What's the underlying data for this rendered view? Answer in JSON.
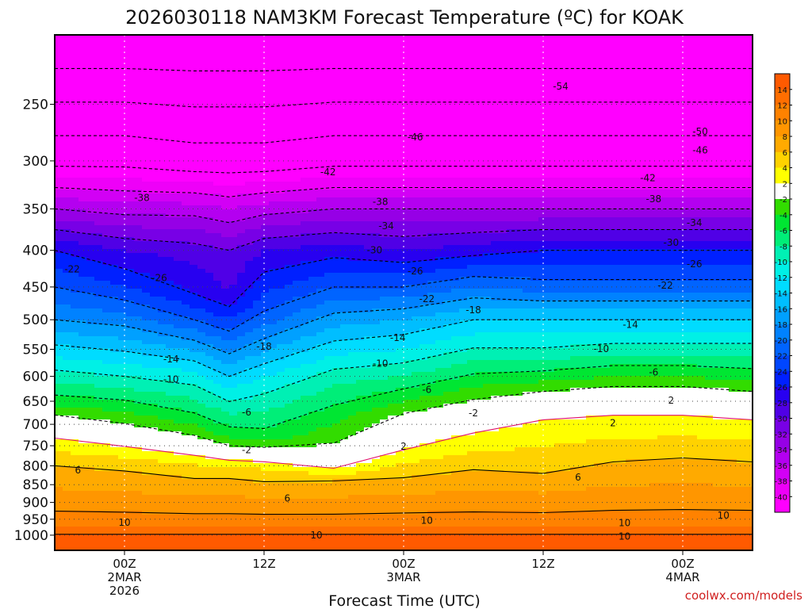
{
  "chart_data": {
    "type": "heatmap",
    "title": "2026030118 NAM3KM Forecast Temperature (ºC) for KOAK",
    "xlabel": "Forecast Time (UTC)",
    "ylabel": "",
    "x_range_hours": [
      -6,
      54
    ],
    "y_range_hpa": [
      200,
      1050
    ],
    "y_scale": "log",
    "y_ticks": [
      250,
      300,
      350,
      400,
      450,
      500,
      550,
      600,
      650,
      700,
      750,
      800,
      850,
      900,
      950,
      1000
    ],
    "x_ticks": [
      {
        "hours": 0,
        "lines": [
          "00Z",
          "2MAR",
          "2026"
        ]
      },
      {
        "hours": 12,
        "lines": [
          "12Z"
        ]
      },
      {
        "hours": 24,
        "lines": [
          "00Z",
          "3MAR"
        ]
      },
      {
        "hours": 36,
        "lines": [
          "12Z"
        ]
      },
      {
        "hours": 48,
        "lines": [
          "00Z",
          "4MAR"
        ]
      }
    ],
    "colorbar": {
      "labels": [
        14,
        12,
        10,
        8,
        6,
        4,
        2,
        -2,
        -4,
        -6,
        -8,
        -10,
        -12,
        -14,
        -16,
        -18,
        -20,
        -22,
        -24,
        -26,
        -28,
        -30,
        -32,
        -34,
        -36,
        -38,
        -40
      ],
      "bands": [
        {
          "lo": 14,
          "hi": 16,
          "color": "#ff5a00"
        },
        {
          "lo": 12,
          "hi": 14,
          "color": "#ff6e00"
        },
        {
          "lo": 10,
          "hi": 12,
          "color": "#ff8200"
        },
        {
          "lo": 8,
          "hi": 10,
          "color": "#ff9600"
        },
        {
          "lo": 6,
          "hi": 8,
          "color": "#ffaa00"
        },
        {
          "lo": 4,
          "hi": 6,
          "color": "#ffd200"
        },
        {
          "lo": 2,
          "hi": 4,
          "color": "#ffff00"
        },
        {
          "lo": -2,
          "hi": 2,
          "color": "#ffffff"
        },
        {
          "lo": -4,
          "hi": -2,
          "color": "#32dc00"
        },
        {
          "lo": -6,
          "hi": -4,
          "color": "#00e632"
        },
        {
          "lo": -8,
          "hi": -6,
          "color": "#00ee78"
        },
        {
          "lo": -10,
          "hi": -8,
          "color": "#00f0b4"
        },
        {
          "lo": -12,
          "hi": -10,
          "color": "#00f0e6"
        },
        {
          "lo": -14,
          "hi": -12,
          "color": "#00dcff"
        },
        {
          "lo": -16,
          "hi": -14,
          "color": "#00beff"
        },
        {
          "lo": -18,
          "hi": -16,
          "color": "#00a0ff"
        },
        {
          "lo": -20,
          "hi": -18,
          "color": "#0082ff"
        },
        {
          "lo": -22,
          "hi": -20,
          "color": "#0064ff"
        },
        {
          "lo": -24,
          "hi": -22,
          "color": "#0046ff"
        },
        {
          "lo": -26,
          "hi": -24,
          "color": "#0020ff"
        },
        {
          "lo": -28,
          "hi": -26,
          "color": "#2800f0"
        },
        {
          "lo": -30,
          "hi": -28,
          "color": "#5000e6"
        },
        {
          "lo": -32,
          "hi": -30,
          "color": "#7800e6"
        },
        {
          "lo": -34,
          "hi": -32,
          "color": "#9600e6"
        },
        {
          "lo": -36,
          "hi": -34,
          "color": "#b400f0"
        },
        {
          "lo": -38,
          "hi": -36,
          "color": "#d200f5"
        },
        {
          "lo": -40,
          "hi": -38,
          "color": "#ee00f8"
        },
        {
          "lo": -80,
          "hi": -40,
          "color": "#ff00ff"
        }
      ]
    },
    "profile_hours": [
      -6,
      0,
      6,
      9,
      12,
      18,
      24,
      30,
      36,
      42,
      48,
      54
    ],
    "profiles": [
      [
        [
          1010,
          15
        ],
        [
          960,
          11
        ],
        [
          800,
          6
        ],
        [
          700,
          0
        ],
        [
          650,
          -5
        ],
        [
          600,
          -9
        ],
        [
          500,
          -18
        ],
        [
          450,
          -22
        ],
        [
          400,
          -26
        ],
        [
          350,
          -34
        ],
        [
          300,
          -43
        ],
        [
          200,
          -58
        ]
      ],
      [
        [
          1010,
          15
        ],
        [
          960,
          11
        ],
        [
          800,
          5.5
        ],
        [
          725,
          0
        ],
        [
          660,
          -5
        ],
        [
          600,
          -10
        ],
        [
          500,
          -19
        ],
        [
          450,
          -24
        ],
        [
          400,
          -28
        ],
        [
          350,
          -35
        ],
        [
          300,
          -43
        ],
        [
          200,
          -58
        ]
      ],
      [
        [
          1010,
          15
        ],
        [
          960,
          11
        ],
        [
          810,
          5
        ],
        [
          750,
          0
        ],
        [
          690,
          -5
        ],
        [
          590,
          -12
        ],
        [
          500,
          -22
        ],
        [
          460,
          -26
        ],
        [
          400,
          -29
        ],
        [
          350,
          -35
        ],
        [
          300,
          -44
        ],
        [
          200,
          -58
        ]
      ],
      [
        [
          1010,
          15
        ],
        [
          960,
          11
        ],
        [
          810,
          5
        ],
        [
          770,
          0
        ],
        [
          720,
          -5
        ],
        [
          600,
          -14
        ],
        [
          500,
          -24
        ],
        [
          460,
          -28
        ],
        [
          400,
          -30
        ],
        [
          350,
          -36
        ],
        [
          300,
          -44
        ],
        [
          200,
          -58
        ]
      ],
      [
        [
          1010,
          15
        ],
        [
          960,
          11
        ],
        [
          820,
          5
        ],
        [
          770,
          0
        ],
        [
          730,
          -5
        ],
        [
          600,
          -12
        ],
        [
          500,
          -21
        ],
        [
          460,
          -24
        ],
        [
          400,
          -28
        ],
        [
          350,
          -35
        ],
        [
          300,
          -44
        ],
        [
          200,
          -58
        ]
      ],
      [
        [
          1010,
          15
        ],
        [
          960,
          11
        ],
        [
          840,
          6
        ],
        [
          790,
          0
        ],
        [
          700,
          -4
        ],
        [
          600,
          -9
        ],
        [
          500,
          -17
        ],
        [
          450,
          -22
        ],
        [
          400,
          -27
        ],
        [
          350,
          -34
        ],
        [
          300,
          -43
        ],
        [
          200,
          -58
        ]
      ],
      [
        [
          1010,
          15
        ],
        [
          960,
          11
        ],
        [
          850,
          7
        ],
        [
          760,
          2
        ],
        [
          690,
          -1
        ],
        [
          650,
          -4
        ],
        [
          600,
          -8
        ],
        [
          550,
          -12
        ],
        [
          500,
          -16
        ],
        [
          450,
          -22
        ],
        [
          400,
          -28
        ],
        [
          350,
          -34
        ],
        [
          300,
          -43
        ],
        [
          200,
          -58
        ]
      ],
      [
        [
          1010,
          15
        ],
        [
          960,
          11
        ],
        [
          810,
          6
        ],
        [
          720,
          2
        ],
        [
          660,
          -1
        ],
        [
          620,
          -4
        ],
        [
          560,
          -9
        ],
        [
          500,
          -14
        ],
        [
          450,
          -20
        ],
        [
          400,
          -27
        ],
        [
          350,
          -34
        ],
        [
          300,
          -43
        ],
        [
          200,
          -58
        ]
      ],
      [
        [
          1010,
          15
        ],
        [
          960,
          11
        ],
        [
          820,
          6
        ],
        [
          690,
          2
        ],
        [
          640,
          -1
        ],
        [
          610,
          -4
        ],
        [
          560,
          -9
        ],
        [
          500,
          -14
        ],
        [
          450,
          -21
        ],
        [
          400,
          -26
        ],
        [
          350,
          -34
        ],
        [
          300,
          -43
        ],
        [
          200,
          -58
        ]
      ],
      [
        [
          1010,
          15
        ],
        [
          960,
          11
        ],
        [
          790,
          6
        ],
        [
          680,
          2
        ],
        [
          630,
          -1
        ],
        [
          600,
          -4
        ],
        [
          550,
          -9
        ],
        [
          500,
          -14
        ],
        [
          450,
          -21
        ],
        [
          400,
          -26
        ],
        [
          350,
          -34
        ],
        [
          300,
          -43
        ],
        [
          200,
          -58
        ]
      ],
      [
        [
          1010,
          15
        ],
        [
          960,
          11
        ],
        [
          780,
          6
        ],
        [
          680,
          2
        ],
        [
          630,
          -1
        ],
        [
          600,
          -4
        ],
        [
          550,
          -9
        ],
        [
          500,
          -14
        ],
        [
          450,
          -21
        ],
        [
          400,
          -26
        ],
        [
          350,
          -34
        ],
        [
          300,
          -43
        ],
        [
          200,
          -58
        ]
      ],
      [
        [
          1010,
          15
        ],
        [
          960,
          11
        ],
        [
          790,
          6
        ],
        [
          690,
          2
        ],
        [
          640,
          -1
        ],
        [
          610,
          -4
        ],
        [
          550,
          -9
        ],
        [
          500,
          -14
        ],
        [
          450,
          -21
        ],
        [
          400,
          -26
        ],
        [
          350,
          -34
        ],
        [
          300,
          -43
        ],
        [
          200,
          -58
        ]
      ]
    ],
    "contour_labels": [
      {
        "text": "-54",
        "hours": 37.5,
        "hpa": 236
      },
      {
        "text": "-50",
        "hours": 49.5,
        "hpa": 273
      },
      {
        "text": "-46",
        "hours": 25,
        "hpa": 278
      },
      {
        "text": "-46",
        "hours": 49.5,
        "hpa": 290
      },
      {
        "text": "-42",
        "hours": 17.5,
        "hpa": 311
      },
      {
        "text": "-42",
        "hours": 45,
        "hpa": 317
      },
      {
        "text": "-38",
        "hours": 1.5,
        "hpa": 338
      },
      {
        "text": "-38",
        "hours": 22,
        "hpa": 342
      },
      {
        "text": "-38",
        "hours": 45.5,
        "hpa": 339
      },
      {
        "text": "-34",
        "hours": 22.5,
        "hpa": 370
      },
      {
        "text": "-34",
        "hours": 49,
        "hpa": 366
      },
      {
        "text": "-30",
        "hours": 21.5,
        "hpa": 400
      },
      {
        "text": "-30",
        "hours": 47,
        "hpa": 390
      },
      {
        "text": "-26",
        "hours": 3,
        "hpa": 437
      },
      {
        "text": "-26",
        "hours": 25,
        "hpa": 428
      },
      {
        "text": "-26",
        "hours": 49,
        "hpa": 418
      },
      {
        "text": "-22",
        "hours": -4.5,
        "hpa": 425
      },
      {
        "text": "-22",
        "hours": 26,
        "hpa": 468
      },
      {
        "text": "-22",
        "hours": 46.5,
        "hpa": 448
      },
      {
        "text": "-18",
        "hours": 12,
        "hpa": 545
      },
      {
        "text": "-18",
        "hours": 30,
        "hpa": 485
      },
      {
        "text": "-14",
        "hours": 4,
        "hpa": 568
      },
      {
        "text": "-14",
        "hours": 23.5,
        "hpa": 530
      },
      {
        "text": "-14",
        "hours": 43.5,
        "hpa": 508
      },
      {
        "text": "-10",
        "hours": 4,
        "hpa": 606
      },
      {
        "text": "-10",
        "hours": 22,
        "hpa": 576
      },
      {
        "text": "-10",
        "hours": 41,
        "hpa": 549
      },
      {
        "text": "-6",
        "hours": 10.5,
        "hpa": 674
      },
      {
        "text": "-6",
        "hours": 26,
        "hpa": 626
      },
      {
        "text": "-6",
        "hours": 45.5,
        "hpa": 592
      },
      {
        "text": "-2",
        "hours": 10.5,
        "hpa": 760
      },
      {
        "text": "-2",
        "hours": 30,
        "hpa": 675
      },
      {
        "text": "2",
        "hours": 24,
        "hpa": 752
      },
      {
        "text": "2",
        "hours": 42,
        "hpa": 697
      },
      {
        "text": "2",
        "hours": 47,
        "hpa": 648
      },
      {
        "text": "6",
        "hours": -4,
        "hpa": 812
      },
      {
        "text": "6",
        "hours": 14,
        "hpa": 888
      },
      {
        "text": "6",
        "hours": 39,
        "hpa": 830
      },
      {
        "text": "10",
        "hours": 0,
        "hpa": 960
      },
      {
        "text": "10",
        "hours": 26,
        "hpa": 954
      },
      {
        "text": "10",
        "hours": 16.5,
        "hpa": 1000
      },
      {
        "text": "10",
        "hours": 43,
        "hpa": 962
      },
      {
        "text": "10",
        "hours": 51.5,
        "hpa": 939
      },
      {
        "text": "10",
        "hours": 43,
        "hpa": 1004
      }
    ]
  },
  "credit": "coolwx.com/models"
}
